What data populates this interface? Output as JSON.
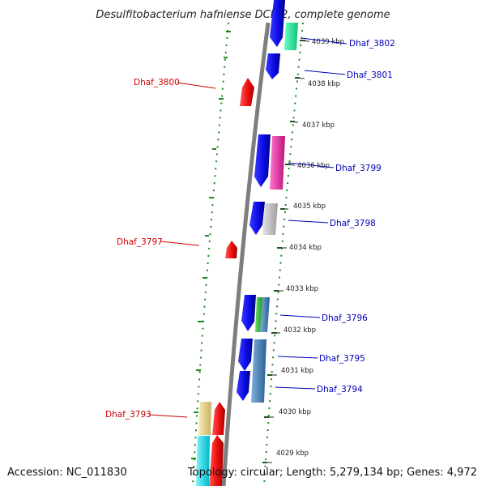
{
  "title": "Desulfitobacterium hafniense DCB-2, complete genome",
  "footer": {
    "accession": "Accession: NC_011830",
    "topology": "Topology: circular; Length: 5,279,134 bp; Genes: 4,972"
  },
  "ticks": [
    "4039 kbp",
    "4038 kbp",
    "4037 kbp",
    "4036 kbp",
    "4035 kbp",
    "4034 kbp",
    "4033 kbp",
    "4032 kbp",
    "4031 kbp",
    "4030 kbp",
    "4029 kbp"
  ],
  "genes": {
    "dhaf_3802": "Dhaf_3802",
    "dhaf_3801": "Dhaf_3801",
    "dhaf_3800": "Dhaf_3800",
    "dhaf_3799": "Dhaf_3799",
    "dhaf_3798": "Dhaf_3798",
    "dhaf_3797": "Dhaf_3797",
    "dhaf_3796": "Dhaf_3796",
    "dhaf_3795": "Dhaf_3795",
    "dhaf_3794": "Dhaf_3794",
    "dhaf_3793": "Dhaf_3793"
  },
  "colors": {
    "cds": "#1010e8",
    "rev_cds": "#ee1111",
    "backbone": "#808080",
    "gc_marks": "#1a8a1a",
    "cog_teal": "#22e89a",
    "cog_pink": "#ee33aa",
    "cog_gray": "#c4c4c4",
    "cog_green": "#33bb33",
    "cog_steel": "#4a86bb",
    "cog_khaki": "#ecd98e",
    "cog_cyan": "#12e6f0"
  }
}
